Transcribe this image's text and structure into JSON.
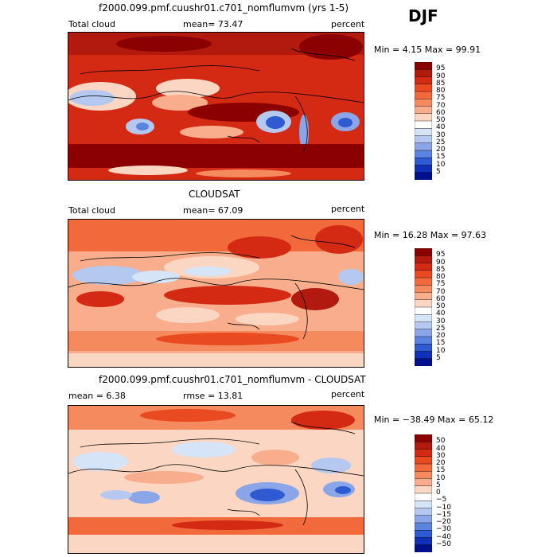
{
  "season": "DJF",
  "panels": [
    {
      "title": "f2000.099.pmf.cuushr01.c701_nomflumvm (yrs 1-5)",
      "left_label": "Total cloud",
      "mid_label": "mean=  73.47",
      "right_label": "percent",
      "minmax": "Min =    4.15 Max =   99.91"
    },
    {
      "title": "CLOUDSAT",
      "left_label": "Total cloud",
      "mid_label": "mean=  67.09",
      "right_label": "percent",
      "minmax": "Min =  16.28 Max =  97.63"
    },
    {
      "title": "f2000.099.pmf.cuushr01.c701_nomflumvm - CLOUDSAT",
      "left_label": "mean =    6.38",
      "mid_label": "rmse =  13.81",
      "right_label": "percent",
      "minmax": "Min = −38.49 Max =  65.12"
    }
  ],
  "colorbars": [
    {
      "labels": [
        "95",
        "90",
        "85",
        "80",
        "75",
        "70",
        "60",
        "50",
        "40",
        "30",
        "25",
        "20",
        "15",
        "10",
        "5"
      ],
      "colors": [
        "#8b0000",
        "#b11a0c",
        "#d42a14",
        "#ea4a22",
        "#f26a3c",
        "#f58a5e",
        "#f8ae8c",
        "#fbd6c2",
        "#ffffff",
        "#d6e4f8",
        "#b4c8f0",
        "#8aa6e8",
        "#5a84e0",
        "#2e5ad2",
        "#1030b8",
        "#00108c"
      ]
    },
    {
      "labels": [
        "95",
        "90",
        "85",
        "80",
        "75",
        "70",
        "60",
        "50",
        "40",
        "30",
        "25",
        "20",
        "15",
        "10",
        "5"
      ],
      "colors": [
        "#8b0000",
        "#b11a0c",
        "#d42a14",
        "#ea4a22",
        "#f26a3c",
        "#f58a5e",
        "#f8ae8c",
        "#fbd6c2",
        "#ffffff",
        "#d6e4f8",
        "#b4c8f0",
        "#8aa6e8",
        "#5a84e0",
        "#2e5ad2",
        "#1030b8",
        "#00108c"
      ]
    },
    {
      "labels": [
        "50",
        "40",
        "30",
        "20",
        "15",
        "10",
        "5",
        "0",
        "−5",
        "−10",
        "−15",
        "−20",
        "−30",
        "−40",
        "−50"
      ],
      "colors": [
        "#8b0000",
        "#b11a0c",
        "#d42a14",
        "#ea4a22",
        "#f26a3c",
        "#f58a5e",
        "#f8ae8c",
        "#fbd6c2",
        "#ffffff",
        "#d6e4f8",
        "#b4c8f0",
        "#8aa6e8",
        "#5a84e0",
        "#2e5ad2",
        "#1030b8",
        "#00108c"
      ]
    }
  ],
  "chart_data": [
    {
      "type": "heatmap",
      "title": "f2000.099.pmf.cuushr01.c701_nomflumvm (yrs 1-5)",
      "variable": "Total cloud",
      "units": "percent",
      "mean": 73.47,
      "min": 4.15,
      "max": 99.91,
      "levels": [
        5,
        10,
        15,
        20,
        25,
        30,
        40,
        50,
        60,
        70,
        75,
        80,
        85,
        90,
        95
      ]
    },
    {
      "type": "heatmap",
      "title": "CLOUDSAT",
      "variable": "Total cloud",
      "units": "percent",
      "mean": 67.09,
      "min": 16.28,
      "max": 97.63,
      "levels": [
        5,
        10,
        15,
        20,
        25,
        30,
        40,
        50,
        60,
        70,
        75,
        80,
        85,
        90,
        95
      ]
    },
    {
      "type": "heatmap",
      "title": "f2000.099.pmf.cuushr01.c701_nomflumvm - CLOUDSAT",
      "units": "percent",
      "mean": 6.38,
      "rmse": 13.81,
      "min": -38.49,
      "max": 65.12,
      "levels": [
        -50,
        -40,
        -30,
        -20,
        -15,
        -10,
        -5,
        0,
        5,
        10,
        15,
        20,
        30,
        40,
        50
      ]
    }
  ]
}
